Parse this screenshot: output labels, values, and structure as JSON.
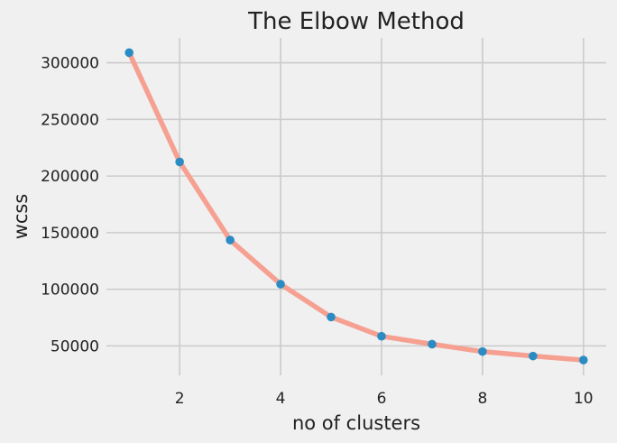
{
  "chart_data": {
    "type": "line",
    "title": "The Elbow Method",
    "xlabel": "no of clusters",
    "ylabel": "wcss",
    "x": [
      1,
      2,
      3,
      4,
      5,
      6,
      7,
      8,
      9,
      10
    ],
    "series": [
      {
        "values": [
          309000,
          212500,
          143500,
          104500,
          75500,
          58500,
          51500,
          45000,
          41000,
          37500
        ],
        "line_color": "#f6a092",
        "marker_color": "#2b8cc4"
      }
    ],
    "xticks": [
      2,
      4,
      6,
      8,
      10
    ],
    "yticks": [
      50000,
      100000,
      150000,
      200000,
      250000,
      300000
    ],
    "xlim": [
      0.55,
      10.45
    ],
    "ylim": [
      24000,
      322000
    ],
    "grid": true,
    "background": "#f0f0f0",
    "grid_color": "#cbcbcb"
  }
}
